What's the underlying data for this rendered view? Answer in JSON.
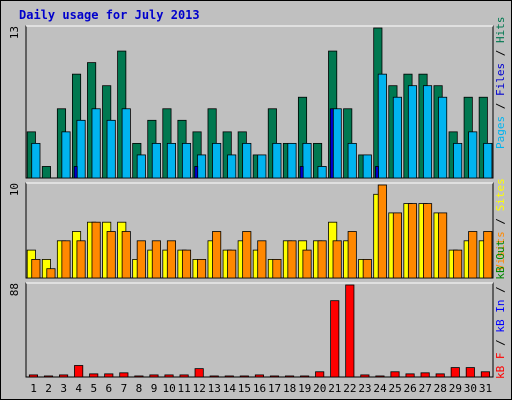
{
  "title": "Daily usage for July 2013",
  "colors": {
    "background": "#c0c0c0",
    "hits": "#007850",
    "files": "#00b4f0",
    "pages": "#0000d0",
    "visits": "#ffff00",
    "sites": "#ff8800",
    "kbout": "#008800",
    "kbin": "#0000ff",
    "kbf": "#ff0000",
    "weekend": "#008040",
    "weekday": "#000000"
  },
  "chart_data": [
    {
      "type": "bar",
      "panel": "top",
      "y_axis_max_label": "13",
      "ylim": [
        0,
        13
      ],
      "label_words": [
        "Pages",
        "/",
        "Files",
        "/",
        "Hits"
      ],
      "categories": [
        "1",
        "2",
        "3",
        "4",
        "5",
        "6",
        "7",
        "8",
        "9",
        "10",
        "11",
        "12",
        "13",
        "14",
        "15",
        "16",
        "17",
        "18",
        "19",
        "20",
        "21",
        "22",
        "23",
        "24",
        "25",
        "26",
        "27",
        "28",
        "29",
        "30",
        "31"
      ],
      "weekend_days": [
        "6",
        "7",
        "13",
        "14",
        "20",
        "21",
        "27",
        "28"
      ],
      "series": [
        {
          "name": "Hits",
          "values": [
            4,
            1,
            6,
            9,
            10,
            8,
            11,
            3,
            5,
            6,
            5,
            4,
            6,
            4,
            4,
            2,
            6,
            3,
            7,
            3,
            11,
            6,
            2,
            13,
            8,
            9,
            9,
            8,
            4,
            7,
            7
          ]
        },
        {
          "name": "Files",
          "values": [
            3,
            0,
            4,
            5,
            6,
            5,
            6,
            2,
            3,
            3,
            3,
            2,
            3,
            2,
            3,
            2,
            3,
            3,
            3,
            1,
            6,
            3,
            2,
            9,
            7,
            8,
            8,
            7,
            3,
            4,
            3
          ]
        },
        {
          "name": "Pages",
          "values": [
            0,
            0,
            0,
            1,
            0,
            0,
            0,
            0,
            0,
            0,
            0,
            1,
            0,
            0,
            0,
            0,
            0,
            0,
            1,
            0,
            6,
            0,
            0,
            1,
            0,
            0,
            0,
            0,
            0,
            0,
            0
          ]
        }
      ]
    },
    {
      "type": "bar",
      "panel": "middle",
      "y_axis_max_label": "10",
      "ylim": [
        0,
        10
      ],
      "label_words": [
        "Visits",
        "/",
        "Sites"
      ],
      "categories": [
        "1",
        "2",
        "3",
        "4",
        "5",
        "6",
        "7",
        "8",
        "9",
        "10",
        "11",
        "12",
        "13",
        "14",
        "15",
        "16",
        "17",
        "18",
        "19",
        "20",
        "21",
        "22",
        "23",
        "24",
        "25",
        "26",
        "27",
        "28",
        "29",
        "30",
        "31"
      ],
      "series": [
        {
          "name": "Visits",
          "values": [
            3,
            2,
            4,
            5,
            6,
            6,
            6,
            2,
            3,
            3,
            3,
            2,
            4,
            3,
            4,
            3,
            2,
            4,
            4,
            4,
            6,
            4,
            2,
            9,
            7,
            8,
            8,
            7,
            3,
            4,
            4
          ]
        },
        {
          "name": "Sites",
          "values": [
            2,
            1,
            4,
            4,
            6,
            5,
            5,
            4,
            4,
            4,
            3,
            2,
            5,
            3,
            5,
            4,
            2,
            4,
            3,
            4,
            4,
            5,
            2,
            10,
            7,
            8,
            8,
            7,
            3,
            5,
            5
          ]
        }
      ]
    },
    {
      "type": "bar",
      "panel": "bottom",
      "y_axis_max_label": "88",
      "ylim": [
        0,
        88
      ],
      "label_words": [
        "kB F",
        "/",
        "kB In",
        "/",
        "kB Out"
      ],
      "categories": [
        "1",
        "2",
        "3",
        "4",
        "5",
        "6",
        "7",
        "8",
        "9",
        "10",
        "11",
        "12",
        "13",
        "14",
        "15",
        "16",
        "17",
        "18",
        "19",
        "20",
        "21",
        "22",
        "23",
        "24",
        "25",
        "26",
        "27",
        "28",
        "29",
        "30",
        "31"
      ],
      "series": [
        {
          "name": "kB F",
          "values": [
            2,
            1,
            2,
            11,
            3,
            3,
            4,
            1,
            2,
            2,
            2,
            8,
            1,
            1,
            1,
            2,
            1,
            1,
            1,
            5,
            73,
            88,
            2,
            1,
            5,
            3,
            4,
            3,
            9,
            9,
            5
          ]
        }
      ]
    }
  ]
}
